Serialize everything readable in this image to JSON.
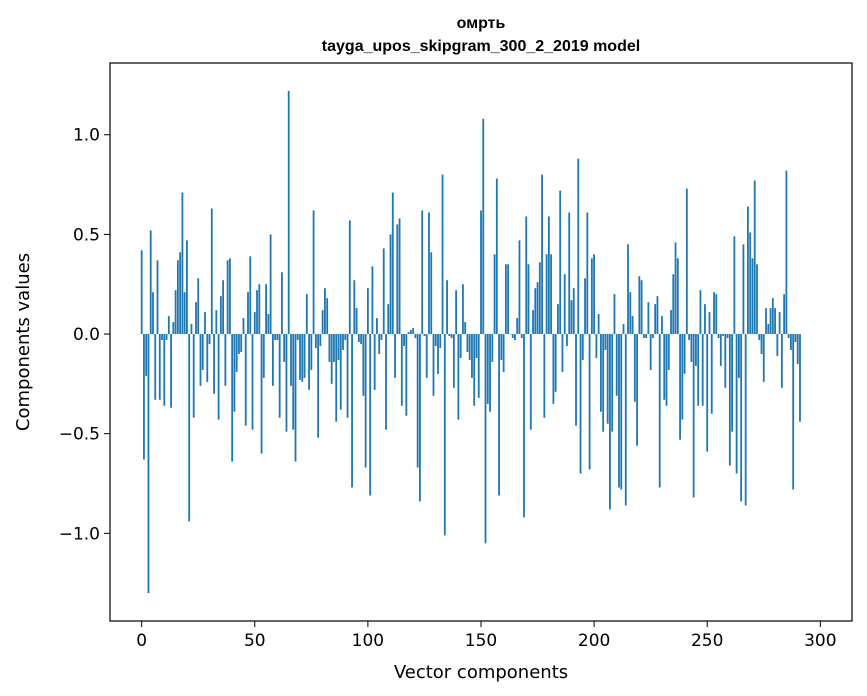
{
  "chart_data": {
    "type": "bar",
    "title": "омрть",
    "subtitle": "tayga_upos_skipgram_300_2_2019 model",
    "xlabel": "Vector components",
    "ylabel": "Components values",
    "xlim": [
      -14,
      314
    ],
    "ylim": [
      -1.44,
      1.36
    ],
    "x_ticks": [
      0,
      50,
      100,
      150,
      200,
      250,
      300
    ],
    "x_tick_labels": [
      "0",
      "50",
      "100",
      "150",
      "200",
      "250",
      "300"
    ],
    "y_ticks": [
      -1.0,
      -0.5,
      0.0,
      0.5,
      1.0
    ],
    "y_tick_labels": [
      "−1.0",
      "−0.5",
      "0.0",
      "0.5",
      "1.0"
    ],
    "bar_color": "#1f77b4",
    "series": [
      {
        "name": "омрть",
        "values": [
          0.42,
          -0.63,
          -0.21,
          -1.3,
          0.52,
          0.21,
          -0.33,
          0.37,
          -0.33,
          -0.03,
          -0.36,
          -0.03,
          0.09,
          -0.37,
          0.06,
          0.22,
          0.37,
          0.41,
          0.71,
          0.21,
          0.47,
          -0.94,
          0.05,
          -0.42,
          0.16,
          0.28,
          -0.26,
          -0.18,
          0.11,
          -0.24,
          -0.05,
          0.63,
          -0.3,
          0.12,
          -0.43,
          0.19,
          0.27,
          -0.26,
          0.37,
          0.38,
          -0.64,
          -0.39,
          -0.19,
          -0.1,
          -0.09,
          0.08,
          -0.46,
          0.21,
          0.39,
          -0.48,
          0.11,
          0.22,
          0.25,
          -0.6,
          -0.22,
          0.25,
          0.1,
          0.5,
          -0.26,
          -0.03,
          -0.03,
          -0.42,
          0.31,
          -0.14,
          -0.49,
          1.22,
          -0.26,
          -0.48,
          -0.64,
          -0.03,
          -0.23,
          -0.24,
          -0.22,
          0.2,
          -0.28,
          -0.18,
          0.62,
          -0.07,
          -0.52,
          -0.06,
          0.12,
          0.23,
          0.18,
          -0.14,
          -0.25,
          -0.14,
          -0.44,
          -0.13,
          -0.38,
          -0.08,
          -0.03,
          -0.42,
          0.57,
          -0.77,
          0.27,
          0.13,
          -0.04,
          -0.05,
          -0.31,
          -0.67,
          0.23,
          -0.81,
          0.34,
          -0.28,
          0.08,
          -0.1,
          -0.03,
          0.43,
          -0.48,
          0.15,
          0.5,
          0.71,
          -0.22,
          0.55,
          0.58,
          -0.36,
          -0.06,
          -0.41,
          0.01,
          0.02,
          0.03,
          -0.02,
          -0.67,
          -0.84,
          0.62,
          -0.01,
          -0.22,
          0.61,
          0.41,
          -0.31,
          -0.06,
          -0.2,
          -0.07,
          0.8,
          -1.01,
          0.27,
          -0.01,
          -0.02,
          -0.27,
          0.22,
          -0.43,
          -0.12,
          0.25,
          0.06,
          -0.09,
          -0.13,
          -0.22,
          -0.36,
          -0.12,
          -0.32,
          0.62,
          1.08,
          -1.05,
          -0.35,
          -0.39,
          -0.14,
          0.4,
          0.78,
          -0.81,
          -0.13,
          -0.19,
          0.35,
          0.35,
          0.0,
          -0.02,
          -0.03,
          0.08,
          0.47,
          -0.02,
          -0.92,
          0.59,
          0.35,
          -0.48,
          0.12,
          0.23,
          0.26,
          0.36,
          0.8,
          -0.42,
          0.4,
          0.59,
          0.4,
          -0.35,
          -0.29,
          0.15,
          0.72,
          -0.19,
          0.3,
          -0.06,
          0.61,
          0.17,
          0.23,
          -0.46,
          0.88,
          -0.7,
          -0.13,
          0.28,
          0.61,
          -0.68,
          0.38,
          0.4,
          -0.12,
          0.1,
          -0.39,
          -0.49,
          -0.08,
          -0.45,
          -0.88,
          -0.49,
          0.2,
          -0.31,
          -0.77,
          -0.78,
          0.05,
          -0.86,
          0.45,
          0.21,
          0.09,
          -0.34,
          -0.56,
          0.29,
          0.27,
          -0.02,
          -0.02,
          0.16,
          -0.18,
          -0.02,
          0.15,
          0.19,
          -0.77,
          0.09,
          -0.33,
          -0.36,
          -0.18,
          0.12,
          0.3,
          0.46,
          0.38,
          -0.53,
          -0.43,
          -0.2,
          0.73,
          -0.03,
          -0.14,
          -0.82,
          -0.16,
          -0.36,
          0.22,
          -0.36,
          0.15,
          -0.59,
          0.11,
          -0.4,
          0.21,
          0.2,
          -0.02,
          -0.16,
          -0.01,
          -0.27,
          -0.02,
          -0.66,
          -0.49,
          0.49,
          -0.7,
          -0.22,
          -0.84,
          0.45,
          -0.86,
          0.64,
          0.51,
          0.38,
          0.77,
          0.35,
          -0.03,
          -0.1,
          -0.24,
          0.13,
          0.05,
          0.13,
          0.18,
          0.13,
          -0.11,
          0.11,
          -0.27,
          0.2,
          0.82,
          -0.02,
          -0.08,
          -0.78,
          -0.04,
          -0.15,
          -0.44
        ]
      }
    ]
  }
}
